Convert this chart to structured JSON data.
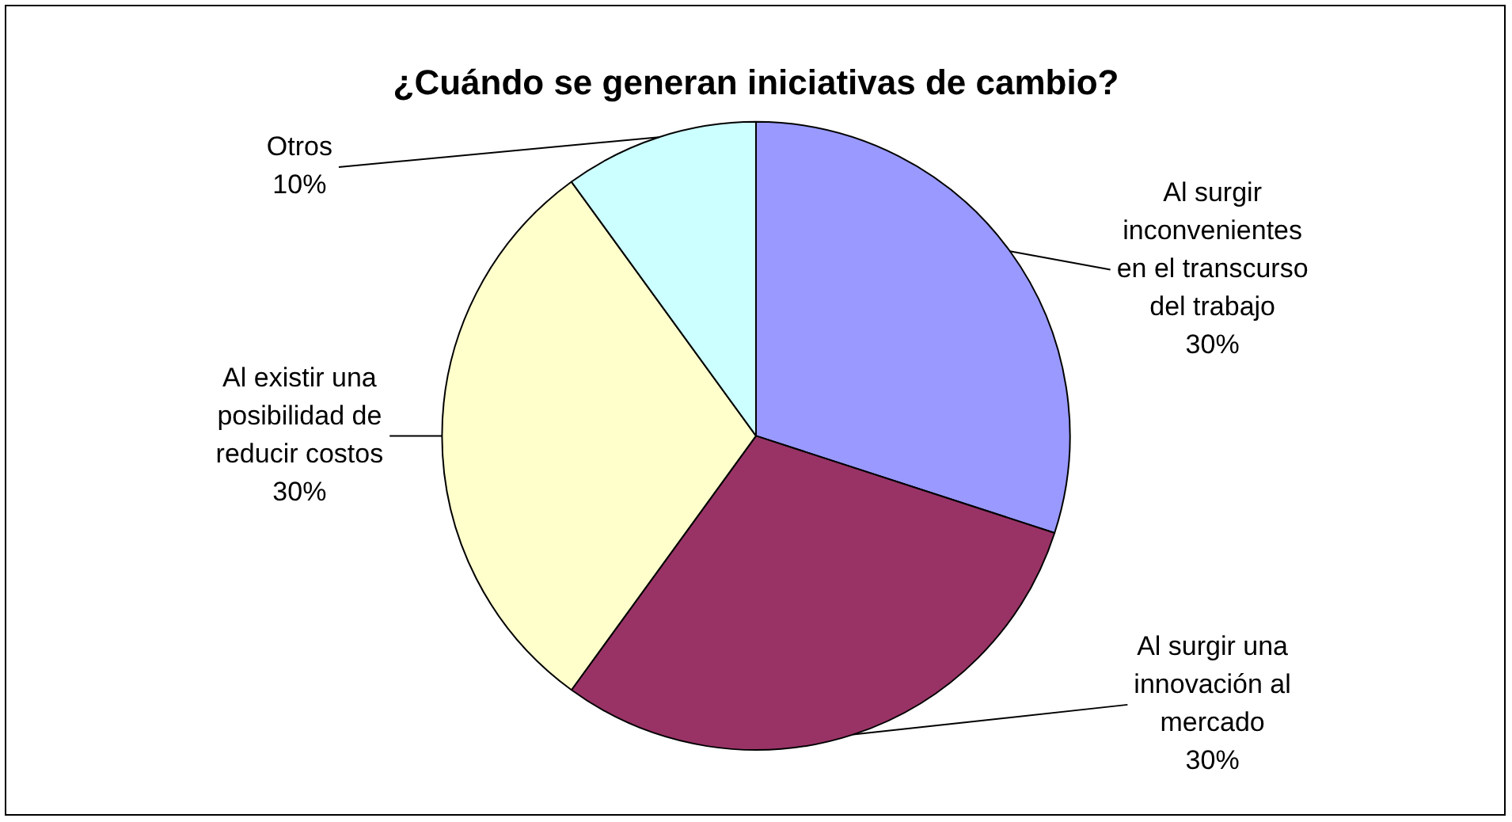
{
  "chart_data": {
    "type": "pie",
    "title": "¿Cuándo se generan iniciativas de cambio?",
    "categories": [
      "Al surgir inconvenientes en el transcurso del trabajo",
      "Al surgir una innovación al mercado",
      "Al existir una posibilidad de reducir costos",
      "Otros"
    ],
    "values": [
      30,
      30,
      30,
      10
    ],
    "value_labels": [
      "30%",
      "30%",
      "30%",
      "10%"
    ],
    "colors": [
      "#9999ff",
      "#993366",
      "#ffffcc",
      "#ccffff"
    ],
    "legend": false
  }
}
